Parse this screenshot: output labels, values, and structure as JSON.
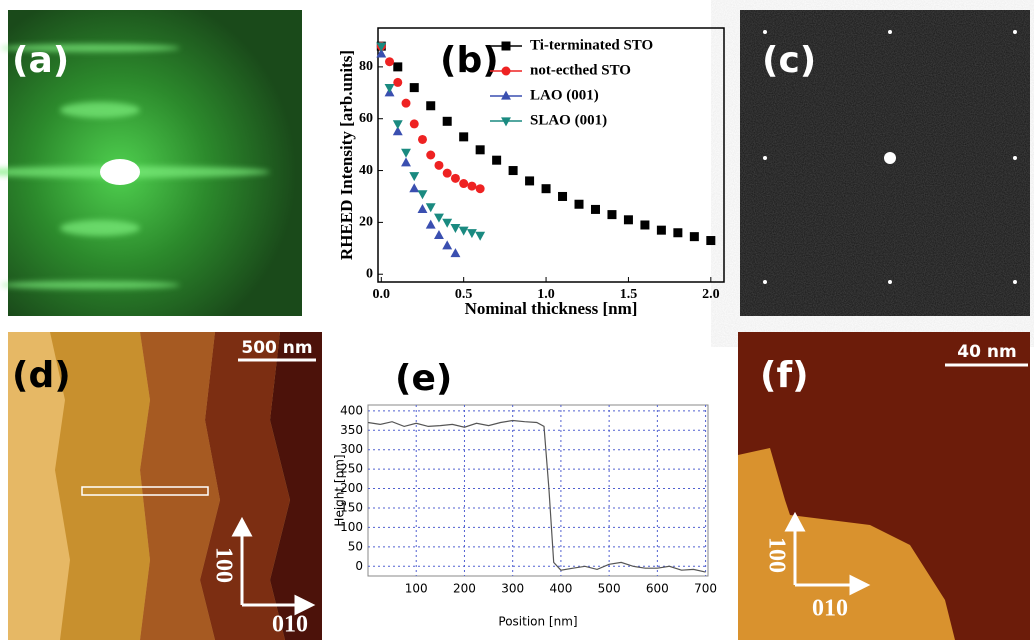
{
  "images": [
    {
      "label": "(a)"
    },
    {
      "label": "(c)"
    },
    {
      "label": "(d)",
      "scale_bar": "500 nm",
      "directions": [
        "100",
        "010"
      ]
    },
    {
      "label": "(f)",
      "scale_bar": "40 nm",
      "directions": [
        "100",
        "010"
      ]
    }
  ],
  "chart_data": [
    {
      "type": "scatter",
      "panel_label": "(b)",
      "x_label": "Nominal thickness  [nm]",
      "y_label": "RHEED Intensity [arb.units]",
      "xlim": [
        -0.02,
        2.08
      ],
      "ylim": [
        -3,
        95
      ],
      "xticks": [
        {
          "value": 0,
          "label": "0.0"
        },
        0.5,
        {
          "value": 1,
          "label": "1.0"
        },
        1.5,
        {
          "value": 2,
          "label": "2.0"
        }
      ],
      "yticks": [
        0,
        20,
        40,
        60,
        80
      ],
      "legend": "top-right",
      "series": [
        {
          "name": "Ti-terminated STO",
          "color": "#000000",
          "marker": "square",
          "x": [
            0,
            0.1,
            0.2,
            0.3,
            0.4,
            0.5,
            0.6,
            0.7,
            0.8,
            0.9,
            1.0,
            1.1,
            1.2,
            1.3,
            1.4,
            1.5,
            1.6,
            1.7,
            1.8,
            1.9,
            2.0
          ],
          "values": [
            88,
            80,
            72,
            65,
            59,
            53,
            48,
            44,
            40,
            36,
            33,
            30,
            27,
            25,
            23,
            21,
            19,
            17,
            16,
            14.5,
            13
          ]
        },
        {
          "name": "not-ecthed STO",
          "color": "#ee2222",
          "marker": "circle",
          "x": [
            0,
            0.05,
            0.1,
            0.15,
            0.2,
            0.25,
            0.3,
            0.35,
            0.4,
            0.45,
            0.5,
            0.55,
            0.6
          ],
          "values": [
            88,
            82,
            74,
            66,
            58,
            52,
            46,
            42,
            39,
            37,
            35,
            34,
            33
          ]
        },
        {
          "name": "LAO (001)",
          "color": "#3a4fb0",
          "marker": "triangle",
          "x": [
            0,
            0.05,
            0.1,
            0.15,
            0.2,
            0.25,
            0.3,
            0.35,
            0.4,
            0.45
          ],
          "values": [
            85,
            70,
            55,
            43,
            33,
            25,
            19,
            15,
            11,
            8
          ]
        },
        {
          "name": "SLAO (001)",
          "color": "#1a8a80",
          "marker": "triangle-down",
          "x": [
            0,
            0.05,
            0.1,
            0.15,
            0.2,
            0.25,
            0.3,
            0.35,
            0.4,
            0.45,
            0.5,
            0.55,
            0.6
          ],
          "values": [
            88,
            72,
            58,
            47,
            38,
            31,
            26,
            22,
            20,
            18,
            17,
            16,
            15
          ]
        }
      ]
    },
    {
      "type": "line",
      "panel_label": "(e)",
      "x_label": "Position [nm]",
      "y_label": "Height [pm]",
      "xlim": [
        0,
        705
      ],
      "ylim": [
        -25,
        415
      ],
      "xticks": [
        100,
        200,
        300,
        400,
        500,
        600,
        700
      ],
      "yticks": [
        0,
        50,
        100,
        150,
        200,
        250,
        300,
        350,
        400
      ],
      "grid": true,
      "color": "#555555",
      "x": [
        0,
        25,
        50,
        75,
        100,
        125,
        150,
        175,
        200,
        225,
        250,
        275,
        300,
        325,
        350,
        365,
        375,
        385,
        400,
        425,
        450,
        475,
        500,
        525,
        550,
        575,
        600,
        625,
        650,
        675,
        700
      ],
      "values": [
        370,
        365,
        372,
        360,
        368,
        360,
        362,
        365,
        358,
        368,
        362,
        370,
        375,
        372,
        370,
        360,
        200,
        10,
        -10,
        -5,
        0,
        -8,
        5,
        10,
        0,
        -5,
        -5,
        0,
        -10,
        -8,
        -15
      ]
    }
  ]
}
